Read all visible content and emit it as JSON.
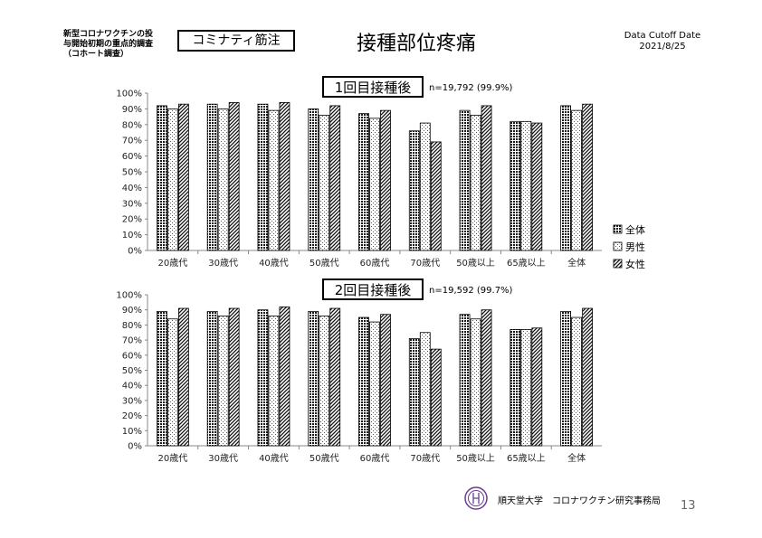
{
  "header": {
    "study_label_lines": [
      "新型コロナワクチンの投",
      "与開始初期の重点的調査",
      "（コホート調査）"
    ],
    "vaccine": "コミナティ筋注",
    "title": "接種部位疼痛",
    "cutoff_label": "Data Cutoff Date",
    "cutoff_date": "2021/8/25"
  },
  "legend": {
    "entries": [
      "全体",
      "男性",
      "女性"
    ],
    "placement": "right"
  },
  "chart_data": [
    {
      "type": "bar",
      "title": "1回目接種後",
      "subtitle": "n=19,792 (99.9%)",
      "categories": [
        "20歳代",
        "30歳代",
        "40歳代",
        "50歳代",
        "60歳代",
        "70歳代",
        "50歳以上",
        "65歳以上",
        "全体"
      ],
      "series": [
        {
          "name": "全体",
          "values": [
            92,
            93,
            93,
            90,
            87,
            76,
            89,
            82,
            92
          ]
        },
        {
          "name": "男性",
          "values": [
            90,
            90,
            89,
            86,
            84,
            81,
            86,
            82,
            89
          ]
        },
        {
          "name": "女性",
          "values": [
            93,
            94,
            94,
            92,
            89,
            69,
            92,
            81,
            93
          ]
        }
      ],
      "ylim": [
        0,
        100
      ],
      "yticks": [
        "0%",
        "10%",
        "20%",
        "30%",
        "40%",
        "50%",
        "60%",
        "70%",
        "80%",
        "90%",
        "100%"
      ],
      "grid": false
    },
    {
      "type": "bar",
      "title": "2回目接種後",
      "subtitle": "n=19,592 (99.7%)",
      "categories": [
        "20歳代",
        "30歳代",
        "40歳代",
        "50歳代",
        "60歳代",
        "70歳代",
        "50歳以上",
        "65歳以上",
        "全体"
      ],
      "series": [
        {
          "name": "全体",
          "values": [
            89,
            89,
            90,
            89,
            85,
            71,
            87,
            77,
            89
          ]
        },
        {
          "name": "男性",
          "values": [
            84,
            86,
            86,
            86,
            82,
            75,
            84,
            77,
            85
          ]
        },
        {
          "name": "女性",
          "values": [
            91,
            91,
            92,
            91,
            87,
            64,
            90,
            78,
            91
          ]
        }
      ],
      "ylim": [
        0,
        100
      ],
      "yticks": [
        "0%",
        "10%",
        "20%",
        "30%",
        "40%",
        "50%",
        "60%",
        "70%",
        "80%",
        "90%",
        "100%"
      ],
      "grid": false
    }
  ],
  "footer": {
    "institution": "順天堂大学　コロナワクチン研究事務局",
    "page_number": "13"
  }
}
